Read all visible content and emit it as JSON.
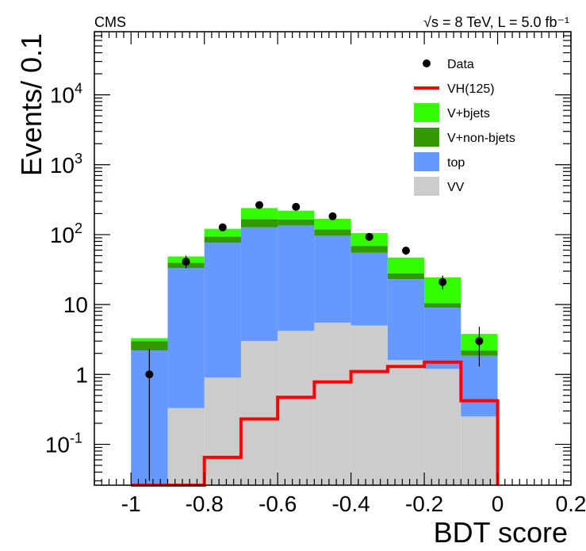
{
  "chart_data": {
    "type": "bar",
    "title_left": "CMS",
    "title_right": "√s = 8 TeV, L = 5.0 fb⁻¹",
    "xlabel": "BDT score",
    "ylabel": "Events/ 0.1",
    "x_range": [
      -1.1,
      0.2
    ],
    "y_range": [
      0.026,
      80000
    ],
    "y_scale": "log",
    "x_ticks": [
      {
        "value": -1,
        "label": "-1"
      },
      {
        "value": -0.8,
        "label": "-0.8"
      },
      {
        "value": -0.6,
        "label": "-0.6"
      },
      {
        "value": -0.4,
        "label": "-0.4"
      },
      {
        "value": -0.2,
        "label": "-0.2"
      },
      {
        "value": 0,
        "label": "0"
      },
      {
        "value": 0.2,
        "label": "0.2"
      }
    ],
    "y_ticks": [
      {
        "value": 0.1,
        "base": "10",
        "exp": "-1"
      },
      {
        "value": 1,
        "base": "1",
        "exp": ""
      },
      {
        "value": 10,
        "base": "10",
        "exp": ""
      },
      {
        "value": 100,
        "base": "10",
        "exp": "2"
      },
      {
        "value": 1000,
        "base": "10",
        "exp": "3"
      },
      {
        "value": 10000,
        "base": "10",
        "exp": "4"
      }
    ],
    "bin_edges": [
      -1.0,
      -0.9,
      -0.8,
      -0.7,
      -0.6,
      -0.5,
      -0.4,
      -0.3,
      -0.2,
      -0.1,
      0.0
    ],
    "stacked_series": [
      {
        "name": "VV",
        "color": "#cccccc",
        "values": [
          0,
          0.33,
          0.9,
          3.0,
          4.2,
          5.5,
          5.0,
          1.6,
          1.2,
          0.25
        ]
      },
      {
        "name": "top",
        "color": "#6699ff",
        "values": [
          2.2,
          33,
          76,
          124,
          131,
          91,
          50,
          21.4,
          7.8,
          1.6
        ]
      },
      {
        "name": "V+non-bjets",
        "color": "#339900",
        "values": [
          0.8,
          6.4,
          17,
          40,
          30,
          22,
          14,
          5,
          1.5,
          0.35
        ]
      },
      {
        "name": "V+bjets",
        "color": "#33ff00",
        "values": [
          0.3,
          9,
          27,
          73,
          55,
          50,
          36,
          19,
          14,
          1.6
        ]
      }
    ],
    "signal": {
      "name": "VH(125)",
      "color": "#ff0000",
      "values": [
        0.01,
        0.01,
        0.065,
        0.23,
        0.47,
        0.78,
        1.1,
        1.3,
        1.5,
        0.42
      ]
    },
    "data": {
      "name": "Data",
      "x": [
        -0.95,
        -0.85,
        -0.75,
        -0.65,
        -0.55,
        -0.45,
        -0.35,
        -0.25,
        -0.15,
        -0.05
      ],
      "y": [
        1,
        41,
        127,
        265,
        250,
        183,
        93,
        59,
        21,
        3
      ],
      "y_low": [
        0.03,
        33,
        114,
        248,
        234,
        169,
        83,
        51,
        16.5,
        1.3
      ],
      "y_high": [
        2.3,
        50,
        140,
        283,
        266,
        197,
        103,
        67,
        26,
        4.8
      ]
    },
    "legend": {
      "placement": "top-right",
      "entries": [
        {
          "label": "Data",
          "kind": "marker",
          "color": "#000000"
        },
        {
          "label": "VH(125)",
          "kind": "line",
          "color": "#ff0000"
        },
        {
          "label": "V+bjets",
          "kind": "box",
          "color": "#33ff00"
        },
        {
          "label": "V+non-bjets",
          "kind": "box",
          "color": "#339900"
        },
        {
          "label": "top",
          "kind": "box",
          "color": "#6699ff"
        },
        {
          "label": "VV",
          "kind": "box",
          "color": "#cccccc"
        }
      ]
    },
    "grid": false
  }
}
